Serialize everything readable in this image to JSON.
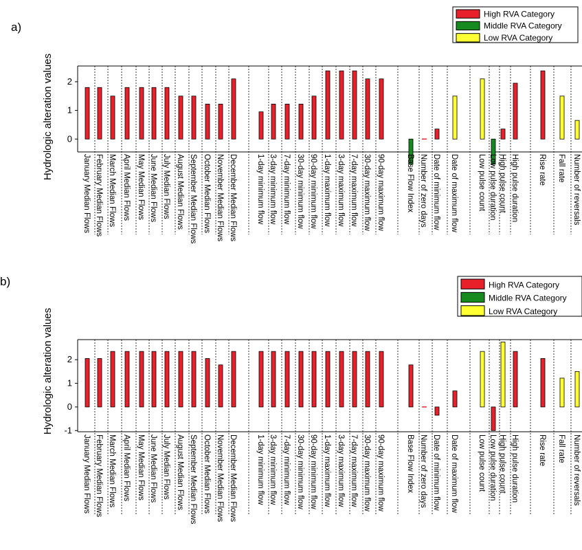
{
  "chart_data": [
    {
      "type": "bar",
      "panel_label": "a)",
      "ylabel": "Hydrologic alteration values",
      "yticks": [
        0,
        1,
        2
      ],
      "ylim": [
        -0.45,
        2.55
      ],
      "legend_position": "top-right",
      "legend": [
        {
          "name": "High RVA Category",
          "color": "#e8202a"
        },
        {
          "name": "Middle RVA Category",
          "color": "#168a1f"
        },
        {
          "name": "Low RVA Category",
          "color": "#ffff33"
        }
      ],
      "categories": [
        "January Median Flows",
        "February Median Flows",
        "March Median Flows",
        "April Median Flows",
        "May Median Flows",
        "June Median Flows",
        "July Median Flows",
        "August Median Flows",
        "September Median Flows",
        "October Median Flows",
        "November Median Flows",
        "December Median Flows",
        "1-day minimum flow",
        "3-day minimum flow",
        "7-day minimum flow",
        "30-day minimum flow",
        "90-day minimum flow",
        "1-day maximum flow",
        "3-day maximum flow",
        "7-day maximum flow",
        "30-day maximum flow",
        "90-day maximum flow",
        "Base Flow Index",
        "Number of zero days",
        "Date of minimum flow",
        "Date of maximum flow",
        "Low pulse count",
        "Low pulse duration",
        "High pulse count",
        "High pulse duration",
        "Rise rate",
        "Fall rate",
        "Number of reversals"
      ],
      "values": [
        1.8,
        1.8,
        1.5,
        1.8,
        1.8,
        1.8,
        1.8,
        1.5,
        1.5,
        1.22,
        1.22,
        2.1,
        0.95,
        1.22,
        1.22,
        1.22,
        1.5,
        2.38,
        2.38,
        2.38,
        2.1,
        2.1,
        -0.88,
        0,
        0.35,
        1.5,
        2.1,
        -0.88,
        0.35,
        1.95,
        2.38,
        1.5,
        0.65
      ],
      "categories_of_bars": [
        "High",
        "High",
        "High",
        "High",
        "High",
        "High",
        "High",
        "High",
        "High",
        "High",
        "High",
        "High",
        "High",
        "High",
        "High",
        "High",
        "High",
        "High",
        "High",
        "High",
        "High",
        "High",
        "Middle",
        "High",
        "High",
        "Low",
        "Low",
        "Middle",
        "High",
        "High",
        "High",
        "Low",
        "Low"
      ]
    },
    {
      "type": "bar",
      "panel_label": "b)",
      "ylabel": "Hydrologic alteration values",
      "yticks": [
        -1,
        0,
        1,
        2
      ],
      "ylim": [
        -1.05,
        2.85
      ],
      "legend_position": "top-right",
      "legend": [
        {
          "name": "High RVA Category",
          "color": "#e8202a"
        },
        {
          "name": "Middle RVA Category",
          "color": "#168a1f"
        },
        {
          "name": "Low RVA Category",
          "color": "#ffff33"
        }
      ],
      "categories": [
        "January Median Flows",
        "February Median Flows",
        "March Median Flows",
        "April Median Flows",
        "May Median Flows",
        "June Median Flows",
        "July Median Flows",
        "August Median Flows",
        "September Median Flows",
        "October Median Flows",
        "November Median Flows",
        "December Median Flows",
        "1-day minimum flow",
        "3-day minimum flow",
        "7-day minimum flow",
        "30-day minimum flow",
        "90-day minimum flow",
        "1-day maximum flow",
        "3-day maximum flow",
        "7-day maximum flow",
        "30-day maximum flow",
        "90-day maximum flow",
        "Base Flow Index",
        "Number of zero days",
        "Date of minimum flow",
        "Date of maximum flow",
        "Low pulse count",
        "Low pulse duration",
        "High pulse count",
        "High pulse duration",
        "Rise rate",
        "Fall rate",
        "Number of reversals"
      ],
      "values": [
        2.05,
        2.05,
        2.35,
        2.35,
        2.35,
        2.35,
        2.35,
        2.35,
        2.35,
        2.05,
        1.78,
        2.35,
        2.35,
        2.35,
        2.35,
        2.35,
        2.35,
        2.35,
        2.35,
        2.35,
        2.35,
        2.35,
        1.78,
        0,
        -0.35,
        0.68,
        2.35,
        -1.0,
        2.75,
        2.35,
        2.05,
        1.22,
        1.5
      ],
      "categories_of_bars": [
        "High",
        "High",
        "High",
        "High",
        "High",
        "High",
        "High",
        "High",
        "High",
        "High",
        "High",
        "High",
        "High",
        "High",
        "High",
        "High",
        "High",
        "High",
        "High",
        "High",
        "High",
        "High",
        "High",
        "High",
        "High",
        "High",
        "Low",
        "High",
        "Low",
        "High",
        "High",
        "Low",
        "Low"
      ]
    }
  ]
}
